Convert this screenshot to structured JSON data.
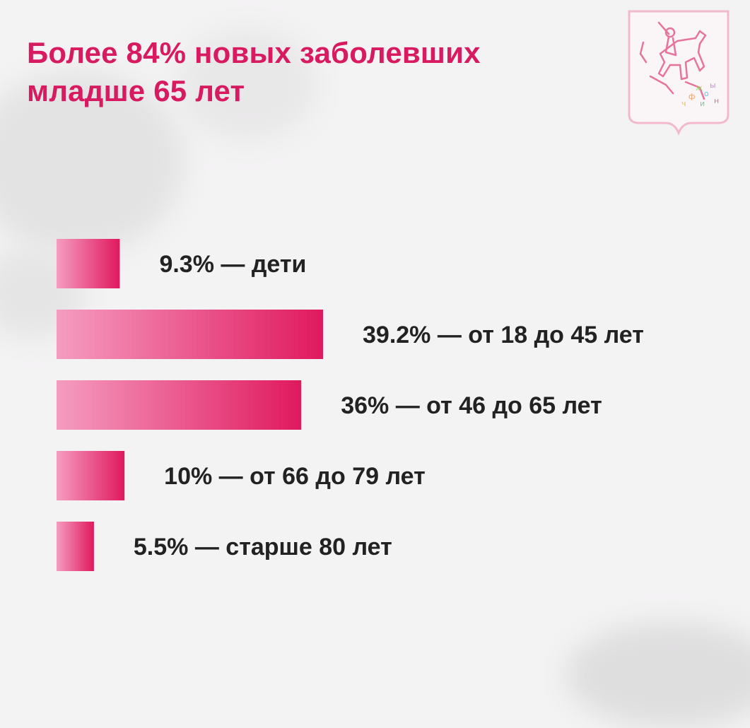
{
  "title_lines": [
    "Более 84% новых заболевших",
    "младше 65 лет"
  ],
  "colors": {
    "accent": "#d81b60",
    "bar_start": "#f59cc0",
    "bar_end": "#e0195e",
    "text": "#222222",
    "background": "#f4f3f4"
  },
  "logo": {
    "name": "moscow-coat-of-arms"
  },
  "chart_data": {
    "type": "bar",
    "orientation": "horizontal",
    "title": "Более 84% новых заболевших младше 65 лет",
    "categories": [
      "дети",
      "от 18 до 45 лет",
      "от 46 до 65 лет",
      "от 66 до 79 лет",
      "старше 80 лет"
    ],
    "values": [
      9.3,
      39.2,
      36,
      10,
      5.5
    ],
    "value_unit": "%",
    "data_labels": [
      "9.3% — дети",
      "39.2% — от 18 до 45 лет",
      "36% —  от 46 до 65 лет",
      "10% —  от 66 до 79 лет",
      "5.5% —  старше 80 лет"
    ],
    "xlim": [
      0,
      39.2
    ],
    "grid": false,
    "legend": "none"
  }
}
